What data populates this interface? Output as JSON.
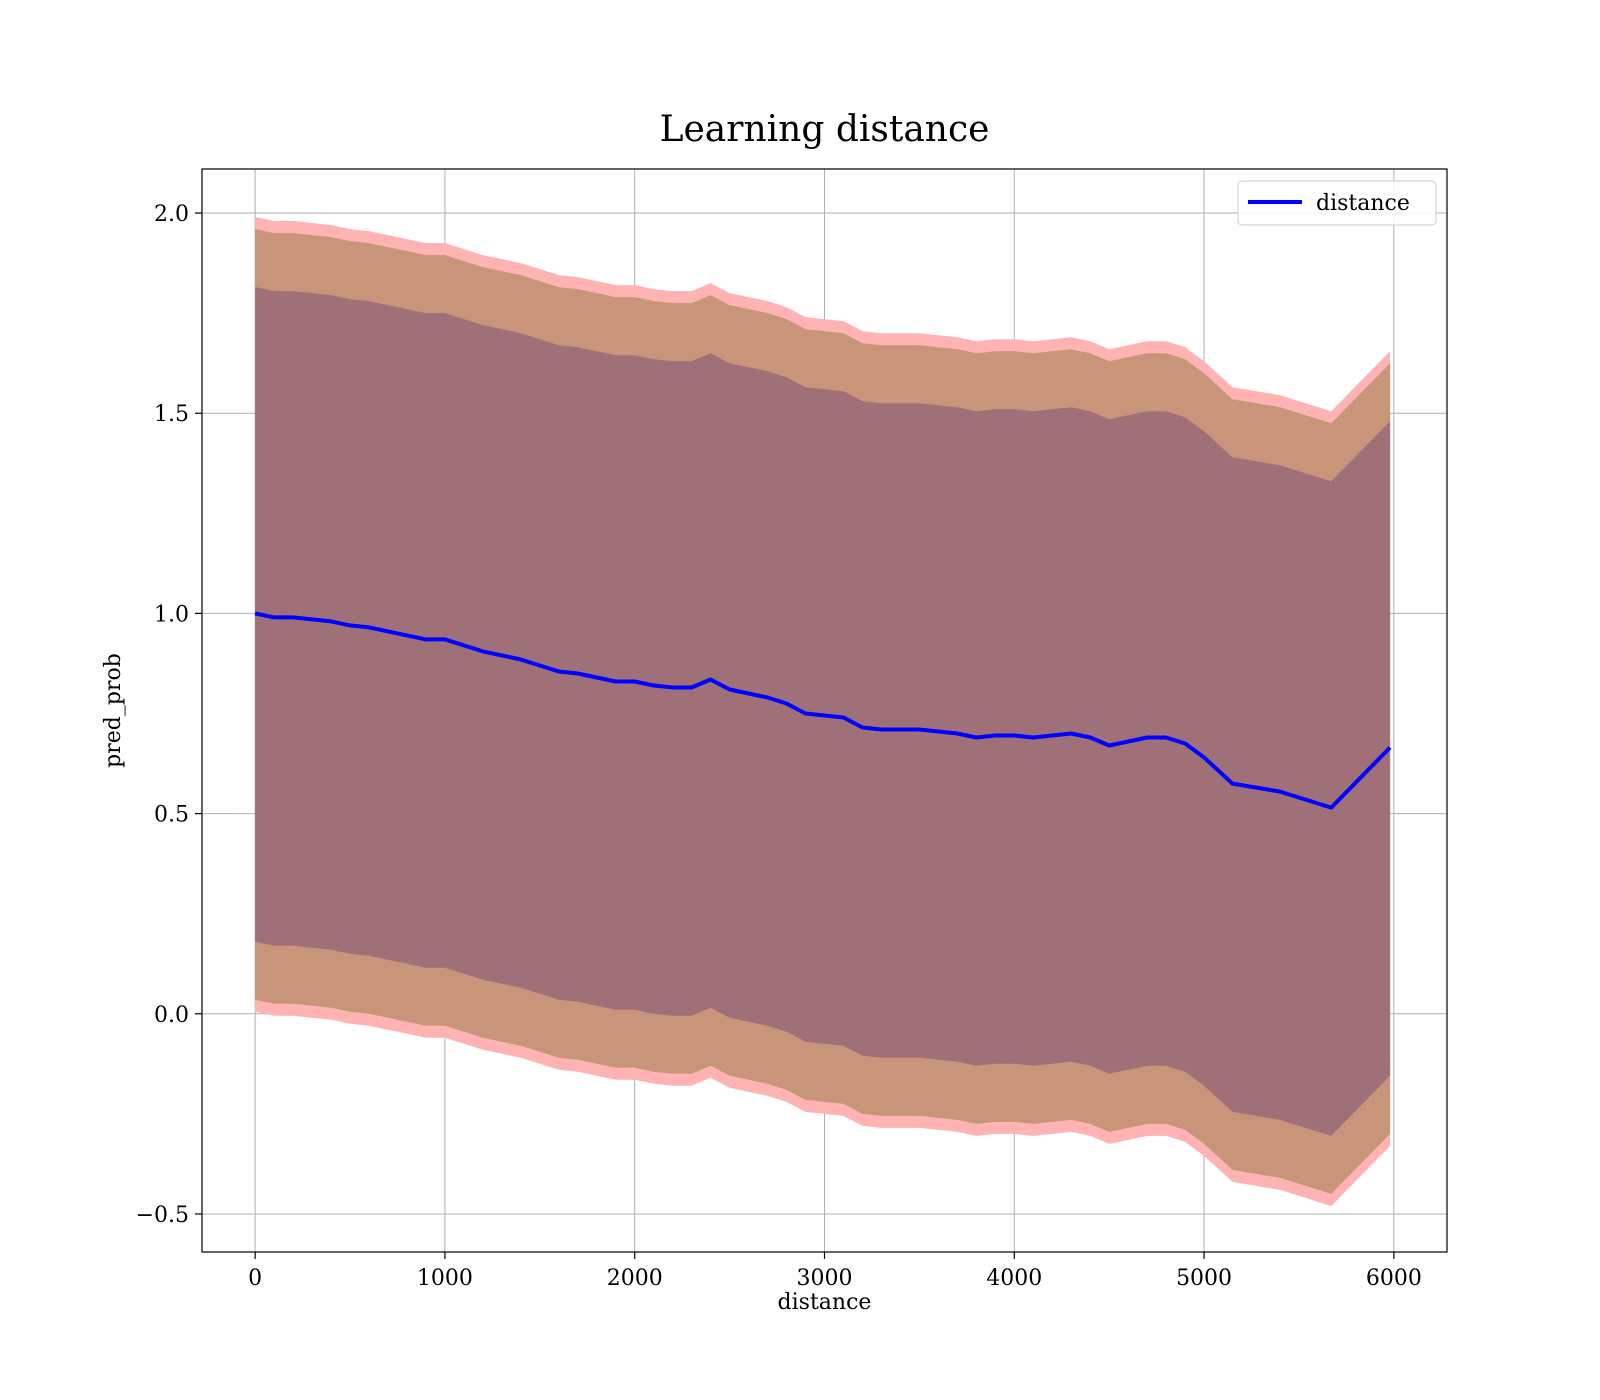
{
  "chart_data": {
    "type": "line",
    "title": "Learning distance",
    "xlabel": "distance",
    "ylabel": "pred_prob",
    "xlim": [
      -280,
      6280
    ],
    "ylim": [
      -0.595,
      2.11
    ],
    "xticks": [
      0,
      1000,
      2000,
      3000,
      4000,
      5000,
      6000
    ],
    "yticks": [
      -0.5,
      0.0,
      0.5,
      1.0,
      1.5,
      2.0
    ],
    "ytick_labels": [
      "−0.5",
      "0.0",
      "0.5",
      "1.0",
      "1.5",
      "2.0"
    ],
    "grid": true,
    "legend_position": "top-right",
    "colors": {
      "line": "#0000ff",
      "band_outer": "#ffb3b3",
      "band_middle": "#c9957a",
      "band_inner": "#a07078"
    },
    "x": [
      0,
      100,
      200,
      300,
      400,
      500,
      600,
      700,
      800,
      900,
      1000,
      1100,
      1200,
      1300,
      1400,
      1500,
      1600,
      1700,
      1800,
      1900,
      2000,
      2100,
      2200,
      2300,
      2400,
      2500,
      2600,
      2700,
      2800,
      2900,
      3000,
      3100,
      3200,
      3300,
      3400,
      3500,
      3600,
      3700,
      3800,
      3900,
      4000,
      4100,
      4200,
      4300,
      4400,
      4500,
      4600,
      4700,
      4800,
      4900,
      5000,
      5150,
      5400,
      5670,
      5980
    ],
    "series": [
      {
        "name": "distance",
        "values": [
          1.0,
          0.99,
          0.99,
          0.985,
          0.98,
          0.97,
          0.965,
          0.955,
          0.945,
          0.935,
          0.935,
          0.92,
          0.905,
          0.895,
          0.885,
          0.87,
          0.855,
          0.85,
          0.84,
          0.83,
          0.83,
          0.82,
          0.815,
          0.815,
          0.835,
          0.81,
          0.8,
          0.79,
          0.775,
          0.75,
          0.745,
          0.74,
          0.715,
          0.71,
          0.71,
          0.71,
          0.705,
          0.7,
          0.69,
          0.695,
          0.695,
          0.69,
          0.695,
          0.7,
          0.69,
          0.67,
          0.68,
          0.69,
          0.69,
          0.675,
          0.64,
          0.575,
          0.555,
          0.515,
          0.665
        ]
      }
    ],
    "bands": {
      "outer_upper_offset": 0.99,
      "middle_upper_offset": 0.96,
      "inner_upper_offset": 0.815,
      "inner_lower_offset": 0.82,
      "middle_lower_offset": 0.965,
      "outer_lower_offset": 0.995
    }
  }
}
